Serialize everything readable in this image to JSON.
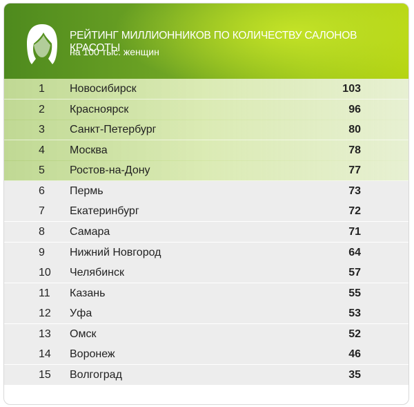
{
  "header": {
    "title": "РЕЙТИНГ МИЛЛИОННИКОВ ПО КОЛИЧЕСТВУ САЛОНОВ КРАСОТЫ",
    "subtitle": "на 100 тыс. женщин"
  },
  "table": {
    "highlighted_rows": 5,
    "rows": [
      {
        "rank": 1,
        "city": "Новосибирск",
        "value": 103
      },
      {
        "rank": 2,
        "city": "Красноярск",
        "value": 96
      },
      {
        "rank": 3,
        "city": "Санкт-Петербург",
        "value": 80
      },
      {
        "rank": 4,
        "city": "Москва",
        "value": 78
      },
      {
        "rank": 5,
        "city": "Ростов-на-Дону",
        "value": 77
      },
      {
        "rank": 6,
        "city": "Пермь",
        "value": 73
      },
      {
        "rank": 7,
        "city": "Екатеринбург",
        "value": 72
      },
      {
        "rank": 8,
        "city": "Самара",
        "value": 71
      },
      {
        "rank": 9,
        "city": "Нижний Новгород",
        "value": 64
      },
      {
        "rank": 10,
        "city": "Челябинск",
        "value": 57
      },
      {
        "rank": 11,
        "city": "Казань",
        "value": 55
      },
      {
        "rank": 12,
        "city": "Уфа",
        "value": 53
      },
      {
        "rank": 13,
        "city": "Омск",
        "value": 52
      },
      {
        "rank": 14,
        "city": "Воронеж",
        "value": 46
      },
      {
        "rank": 15,
        "city": "Волгоград",
        "value": 35
      }
    ]
  }
}
